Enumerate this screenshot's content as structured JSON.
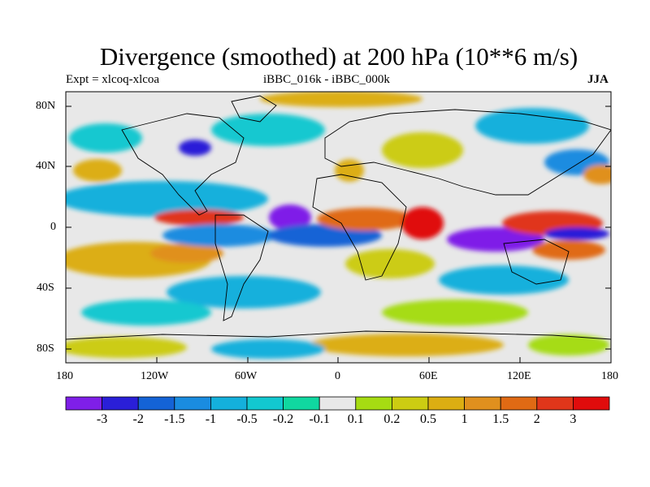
{
  "title": "Divergence (smoothed) at 200 hPa (10**6 m/s)",
  "subtitle_left": "Expt = xlcoq-xlcoa",
  "subtitle_center": "iBBC_016k - iBBC_000k",
  "subtitle_right": "JJA",
  "lat_ticks": [
    "80N",
    "40N",
    "0",
    "40S",
    "80S"
  ],
  "lon_ticks": [
    "180",
    "120W",
    "60W",
    "0",
    "60E",
    "120E",
    "180"
  ],
  "colorbar": {
    "labels": [
      "-3",
      "-2",
      "-1.5",
      "-1",
      "-0.5",
      "-0.2",
      "-0.1",
      "0.1",
      "0.2",
      "0.5",
      "1",
      "1.5",
      "2",
      "3"
    ],
    "colors": [
      "#7f1fe8",
      "#2a1fd8",
      "#1463d6",
      "#1a8ce0",
      "#14b0dc",
      "#12c8d0",
      "#10d8a0",
      "#e8e8e8",
      "#a6dc12",
      "#cccc12",
      "#dcae12",
      "#e0901e",
      "#e06a14",
      "#e0361a",
      "#e00c0c"
    ]
  }
}
